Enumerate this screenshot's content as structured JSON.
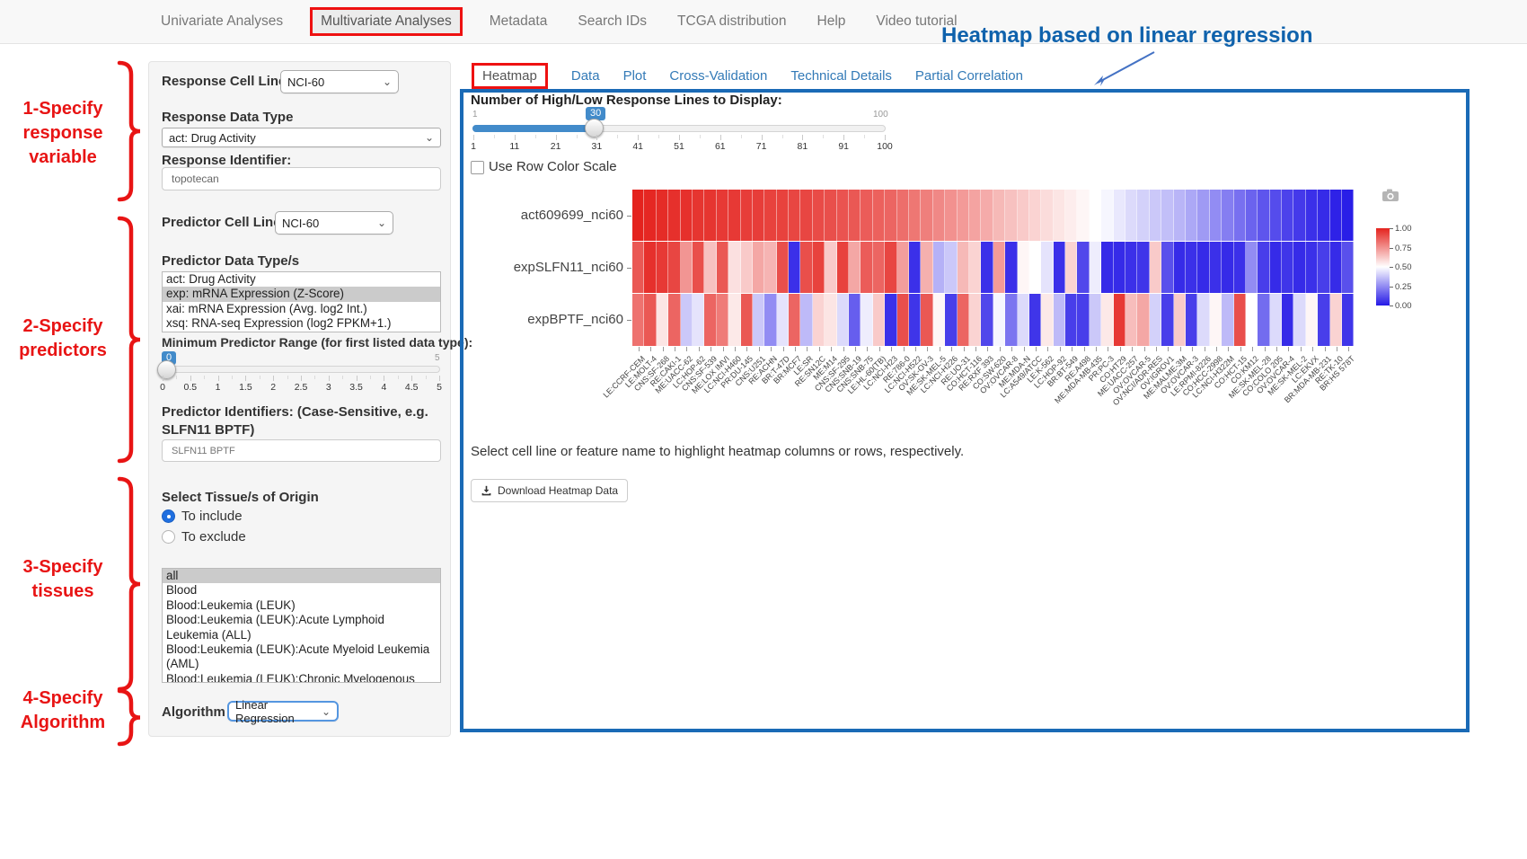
{
  "nav": {
    "items": [
      "Univariate Analyses",
      "Multivariate Analyses",
      "Metadata",
      "Search IDs",
      "TCGA distribution",
      "Help",
      "Video tutorial"
    ],
    "active": "Multivariate Analyses"
  },
  "annotation": {
    "title": "Heatmap based on linear regression",
    "title_color": "#0f62ac",
    "step_color": "#e81414",
    "steps": [
      [
        "1-Specify",
        "response",
        "variable"
      ],
      [
        "2-Specify",
        "predictors"
      ],
      [
        "3-Specify",
        "tissues"
      ],
      [
        "4-Specify",
        "Algorithm"
      ]
    ]
  },
  "sidebar": {
    "response_cell_line_set": {
      "label": "Response Cell Line Set",
      "value": "NCI-60"
    },
    "response_data_type": {
      "label": "Response Data Type",
      "value": "act: Drug Activity"
    },
    "response_identifier": {
      "label": "Response Identifier:",
      "value": "topotecan"
    },
    "predictor_cell_line_set": {
      "label": "Predictor Cell Line Set",
      "value": "NCI-60"
    },
    "predictor_data_types": {
      "label": "Predictor Data Type/s",
      "options": [
        "act: Drug Activity",
        "exp: mRNA Expression (Z-Score)",
        "xai: mRNA Expression (Avg. log2 Int.)",
        "xsq: RNA-seq Expression (log2 FPKM+1.)"
      ],
      "selected": "exp: mRNA Expression (Z-Score)"
    },
    "min_predictor_range": {
      "label": "Minimum Predictor Range (for first listed data type):",
      "value": "0",
      "max_label": "5",
      "ticks": [
        "0",
        "0.5",
        "1",
        "1.5",
        "2",
        "2.5",
        "3",
        "3.5",
        "4",
        "4.5",
        "5"
      ]
    },
    "predictor_identifiers": {
      "label": "Predictor Identifiers: (Case-Sensitive, e.g. SLFN11 BPTF)",
      "value": "SLFN11 BPTF"
    },
    "tissue": {
      "label": "Select Tissue/s of Origin",
      "radios": [
        "To include",
        "To exclude"
      ],
      "selected_radio": "To include",
      "options": [
        "all",
        "Blood",
        "Blood:Leukemia (LEUK)",
        "Blood:Leukemia (LEUK):Acute Lymphoid Leukemia (ALL)",
        "Blood:Leukemia (LEUK):Acute Myeloid Leukemia (AML)",
        "Blood:Leukemia (LEUK):Chronic Myelogenous Leukemia (CML)"
      ],
      "selected": "all"
    },
    "algorithm": {
      "label": "Algorithm",
      "value": "Linear Regression"
    }
  },
  "main": {
    "tabs": [
      "Heatmap",
      "Data",
      "Plot",
      "Cross-Validation",
      "Technical Details",
      "Partial Correlation"
    ],
    "active_tab": "Heatmap",
    "lines_slider": {
      "label": "Number of High/Low Response Lines to Display:",
      "value": "30",
      "min_label": "1",
      "max_label": "100",
      "ticks": [
        "1",
        "11",
        "21",
        "31",
        "41",
        "51",
        "61",
        "71",
        "81",
        "91",
        "100"
      ]
    },
    "row_color_checkbox": {
      "label": "Use Row Color Scale",
      "checked": false
    },
    "hint": "Select cell line or feature name to highlight heatmap columns or rows, respectively.",
    "download_button": "Download Heatmap Data"
  },
  "chart_data": {
    "type": "heatmap",
    "rows": [
      "act609699_nci60",
      "expSLFN11_nci60",
      "expBPTF_nci60"
    ],
    "columns": [
      "LE:CCRF-CEM",
      "LE:MOLT-4",
      "CNS:SF-268",
      "RE:CAKI-1",
      "ME:UACC-62",
      "LC:HOP-62",
      "CNS:SF-539",
      "ME:LOX IMVI",
      "LC:NCI-H460",
      "PR:DU-145",
      "CNS:U251",
      "RE:ACHN",
      "BR:T-47D",
      "BR:MCF7",
      "LE:SR",
      "RE:SN12C",
      "ME:M14",
      "CNS:SF-295",
      "CNS:SNB-19",
      "CNS:SNB-75",
      "LE:HL-60(TB)",
      "LC:NCI-H23",
      "RE:786-0",
      "LC:NCI-H522",
      "OV:SK-OV-3",
      "ME:SK-MEL-5",
      "LC:NCI-H226",
      "RE:UO-31",
      "CO:HCT-116",
      "RE:RXF 393",
      "CO:SW-620",
      "OV:OVCAR-8",
      "ME:MDA-N",
      "LC:A549/ATCC",
      "LE:K-562",
      "LC:HOP-92",
      "BR:BT-549",
      "RE:A498",
      "ME:MDA-MB-435",
      "PR:PC-3",
      "CO:HT29",
      "ME:UACC-257",
      "OV:OVCAR-5",
      "OV:NCI/ADR-RES",
      "OV:IGROV1",
      "ME:MALME-3M",
      "OV:OVCAR-3",
      "LE:RPMI-8226",
      "CO:HCC-2998",
      "LC:NCI-H322M",
      "CO:HCT-15",
      "CO:KM12",
      "ME:SK-MEL-28",
      "CO:COLO 205",
      "OV:OVCAR-4",
      "ME:SK-MEL-2",
      "LC:EKVX",
      "BR:MDA-MB-231",
      "RE:TK-10",
      "BR:HS 578T"
    ],
    "values": [
      [
        1.0,
        0.99,
        0.98,
        0.97,
        0.97,
        0.96,
        0.96,
        0.95,
        0.95,
        0.94,
        0.94,
        0.93,
        0.93,
        0.92,
        0.92,
        0.91,
        0.9,
        0.89,
        0.88,
        0.87,
        0.86,
        0.85,
        0.83,
        0.81,
        0.79,
        0.77,
        0.75,
        0.73,
        0.71,
        0.69,
        0.66,
        0.64,
        0.62,
        0.6,
        0.58,
        0.56,
        0.54,
        0.52,
        0.5,
        0.48,
        0.45,
        0.42,
        0.4,
        0.38,
        0.36,
        0.34,
        0.31,
        0.28,
        0.25,
        0.22,
        0.19,
        0.16,
        0.13,
        0.11,
        0.09,
        0.07,
        0.05,
        0.04,
        0.02,
        0.01
      ],
      [
        0.88,
        0.97,
        0.95,
        0.92,
        0.74,
        0.9,
        0.64,
        0.88,
        0.57,
        0.62,
        0.7,
        0.67,
        0.9,
        0.05,
        0.9,
        0.93,
        0.62,
        0.93,
        0.7,
        0.87,
        0.85,
        0.92,
        0.72,
        0.05,
        0.68,
        0.33,
        0.38,
        0.66,
        0.6,
        0.05,
        0.73,
        0.05,
        0.52,
        0.5,
        0.44,
        0.05,
        0.6,
        0.1,
        0.46,
        0.04,
        0.04,
        0.05,
        0.06,
        0.62,
        0.12,
        0.04,
        0.05,
        0.04,
        0.05,
        0.04,
        0.05,
        0.25,
        0.08,
        0.04,
        0.06,
        0.04,
        0.05,
        0.08,
        0.04,
        0.12
      ],
      [
        0.82,
        0.88,
        0.56,
        0.85,
        0.38,
        0.44,
        0.85,
        0.8,
        0.55,
        0.88,
        0.38,
        0.25,
        0.44,
        0.85,
        0.35,
        0.6,
        0.56,
        0.42,
        0.15,
        0.46,
        0.62,
        0.05,
        0.9,
        0.06,
        0.88,
        0.52,
        0.08,
        0.85,
        0.6,
        0.1,
        0.48,
        0.2,
        0.42,
        0.06,
        0.55,
        0.35,
        0.08,
        0.08,
        0.38,
        0.55,
        0.95,
        0.65,
        0.7,
        0.4,
        0.08,
        0.62,
        0.08,
        0.42,
        0.52,
        0.35,
        0.9,
        0.5,
        0.18,
        0.42,
        0.04,
        0.42,
        0.52,
        0.08,
        0.6,
        0.06
      ]
    ],
    "color_high": "#e4231e",
    "color_mid": "#ffffff",
    "color_low": "#2519e6",
    "value_range": [
      0,
      1
    ],
    "legend_ticks": [
      "1.00",
      "0.75",
      "0.50",
      "0.25",
      "0.00"
    ]
  }
}
